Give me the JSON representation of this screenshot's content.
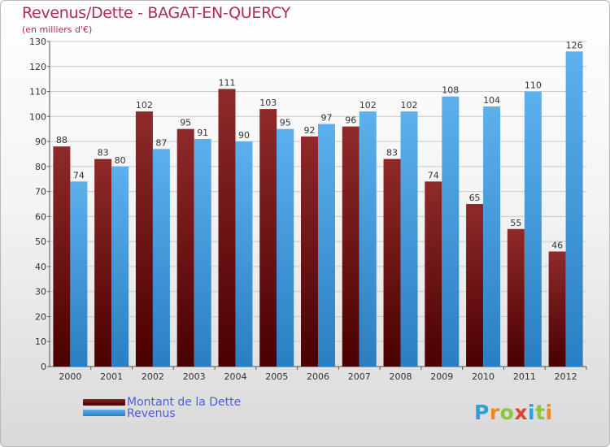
{
  "header": {
    "title": "Revenus/Dette - BAGAT-EN-QUERCY",
    "subtitle": "(en milliers d'€)"
  },
  "legend": {
    "items": [
      {
        "label": "Montant de la Dette",
        "color": "#6a0a0a"
      },
      {
        "label": "Revenus",
        "color": "#4aa3e8"
      }
    ]
  },
  "logo": {
    "letters": [
      {
        "ch": "P",
        "color": "#2f9fd8"
      },
      {
        "ch": "r",
        "color": "#f08a1c"
      },
      {
        "ch": "o",
        "color": "#8cc63f"
      },
      {
        "ch": "x",
        "color": "#e8412b"
      },
      {
        "ch": "i",
        "color": "#2f9fd8"
      },
      {
        "ch": "t",
        "color": "#8cc63f"
      },
      {
        "ch": "i",
        "color": "#f08a1c"
      }
    ]
  },
  "chart_data": {
    "type": "bar",
    "title": "Revenus/Dette - BAGAT-EN-QUERCY",
    "subtitle": "(en milliers d'€)",
    "categories": [
      "2000",
      "2001",
      "2002",
      "2003",
      "2004",
      "2005",
      "2006",
      "2007",
      "2008",
      "2009",
      "2010",
      "2011",
      "2012"
    ],
    "series": [
      {
        "name": "Montant de la Dette",
        "color": "#7a1414",
        "values": [
          88,
          83,
          102,
          95,
          111,
          103,
          92,
          96,
          83,
          74,
          65,
          55,
          46
        ]
      },
      {
        "name": "Revenus",
        "color": "#4aa3e8",
        "values": [
          74,
          80,
          87,
          91,
          90,
          95,
          97,
          102,
          102,
          108,
          104,
          110,
          126
        ]
      }
    ],
    "ylim": [
      0,
      130
    ],
    "yticks": [
      0,
      10,
      20,
      30,
      40,
      50,
      60,
      70,
      80,
      90,
      100,
      110,
      120,
      130
    ],
    "grid": true,
    "legend_position": "bottom-left"
  }
}
